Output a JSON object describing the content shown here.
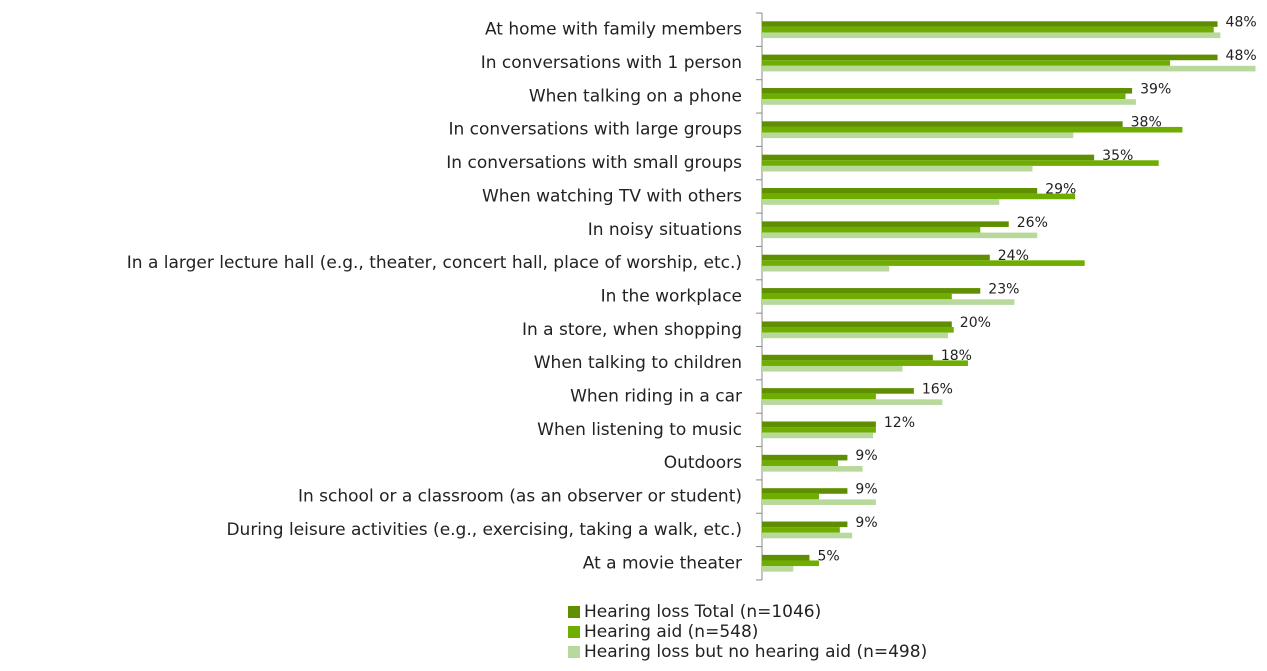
{
  "chart_data": {
    "type": "bar",
    "orientation": "horizontal",
    "categories": [
      "At home with family members",
      "In conversations with 1 person",
      "When talking on a phone",
      "In conversations with large groups",
      "In conversations with small groups",
      "When watching TV with others",
      "In noisy situations",
      "In a larger lecture hall (e.g., theater, concert hall, place of worship, etc.)",
      "In the workplace",
      "In a store, when shopping",
      "When talking to children",
      "When riding in a car",
      "When listening to music",
      "Outdoors",
      "In school or a classroom (as an observer or student)",
      "During leisure activities (e.g., exercising, taking a walk, etc.)",
      "At a movie theater"
    ],
    "series": [
      {
        "name": "Hearing loss Total (n=1046)",
        "color": "#5f8f00",
        "values": [
          48,
          48,
          39,
          38,
          35,
          29,
          26,
          24,
          23,
          20,
          18,
          16,
          12,
          9,
          9,
          9,
          5
        ],
        "value_labels": [
          "48%",
          "48%",
          "39%",
          "38%",
          "35%",
          "29%",
          "26%",
          "24%",
          "23%",
          "20%",
          "18%",
          "16%",
          "12%",
          "9%",
          "9%",
          "9%",
          "5%"
        ]
      },
      {
        "name": "Hearing aid (n=548)",
        "color": "#6fae00",
        "values": [
          47.6,
          43,
          38.3,
          44.3,
          41.8,
          33,
          23,
          34,
          20,
          20.2,
          21.7,
          12,
          12,
          8,
          6,
          8.2,
          6
        ]
      },
      {
        "name": "Hearing loss but no hearing aid (n=498)",
        "color": "#b8d99b",
        "values": [
          48.3,
          52,
          39.4,
          32.8,
          28.5,
          25,
          29,
          13.4,
          26.6,
          19.6,
          14.8,
          19,
          11.7,
          10.6,
          12,
          9.5,
          3.3
        ]
      }
    ],
    "xlim": [
      0,
      53
    ],
    "legend": "bottom"
  }
}
